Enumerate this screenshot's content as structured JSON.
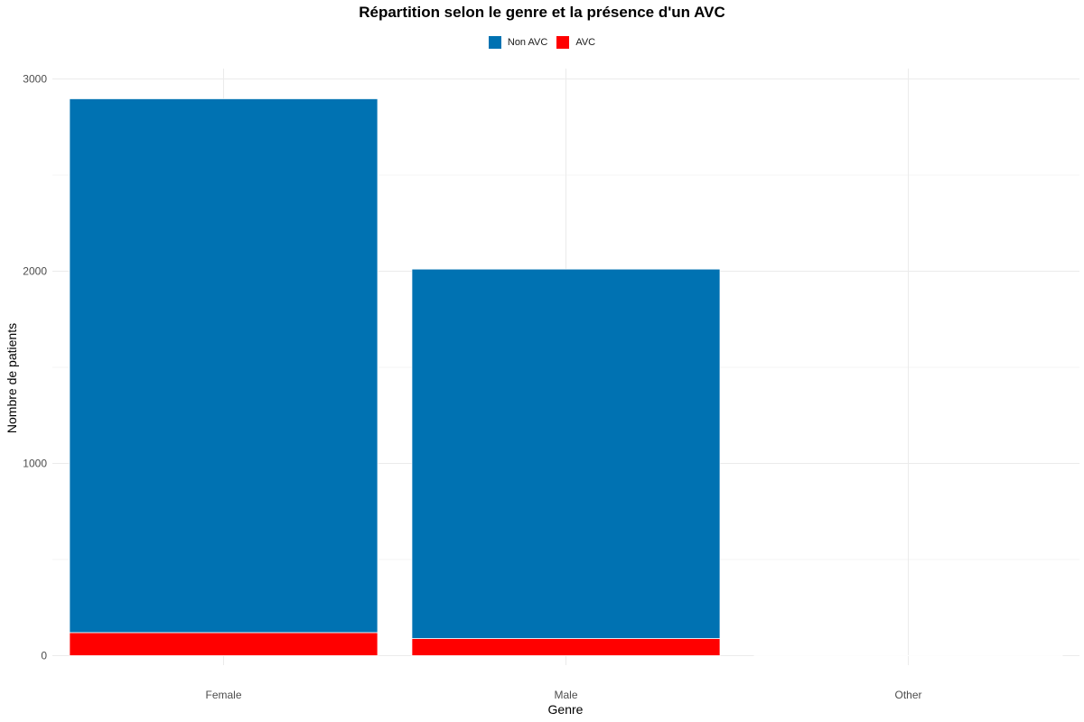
{
  "chart_data": {
    "type": "bar",
    "stacked": true,
    "title": "Répartition selon le genre et la présence d'un AVC",
    "xlabel": "Genre",
    "ylabel": "Nombre de patients",
    "categories": [
      "Female",
      "Male",
      "Other"
    ],
    "series": [
      {
        "name": "Non AVC",
        "color": "#0072B2",
        "values": [
          2777,
          1922,
          1
        ]
      },
      {
        "name": "AVC",
        "color": "#FF0000",
        "values": [
          120,
          89,
          0
        ]
      }
    ],
    "ylim": [
      0,
      3000
    ],
    "yticks": [
      0,
      1000,
      2000,
      3000
    ],
    "grid": true,
    "legend_position": "top"
  }
}
